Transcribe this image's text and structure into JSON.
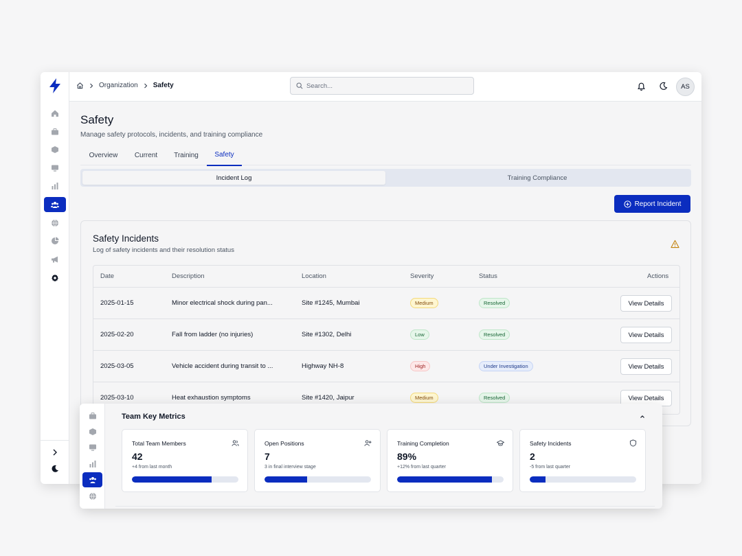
{
  "breadcrumb": {
    "items": [
      "Organization",
      "Safety"
    ]
  },
  "search": {
    "placeholder": "Search..."
  },
  "user": {
    "initials": "AS"
  },
  "page": {
    "title": "Safety",
    "subtitle": "Manage safety protocols, incidents, and training compliance"
  },
  "tabs": [
    "Overview",
    "Current",
    "Training",
    "Safety"
  ],
  "subtabs": [
    "Incident Log",
    "Training Compliance"
  ],
  "actions": {
    "report_label": "Report Incident"
  },
  "incidents": {
    "title": "Safety Incidents",
    "subtitle": "Log of safety incidents and their resolution status",
    "columns": [
      "Date",
      "Description",
      "Location",
      "Severity",
      "Status",
      "Actions"
    ],
    "rows": [
      {
        "date": "2025-01-15",
        "description": "Minor electrical shock during pan...",
        "location": "Site #1245, Mumbai",
        "severity": "Medium",
        "status": "Resolved",
        "action": "View Details"
      },
      {
        "date": "2025-02-20",
        "description": "Fall from ladder (no injuries)",
        "location": "Site #1302, Delhi",
        "severity": "Low",
        "status": "Resolved",
        "action": "View Details"
      },
      {
        "date": "2025-03-05",
        "description": "Vehicle accident during transit to ...",
        "location": "Highway NH-8",
        "severity": "High",
        "status": "Under Investigation",
        "action": "View Details"
      },
      {
        "date": "2025-03-10",
        "description": "Heat exhaustion symptoms",
        "location": "Site #1420, Jaipur",
        "severity": "Medium",
        "status": "Resolved",
        "action": "View Details"
      }
    ]
  },
  "metrics": {
    "title": "Team Key Metrics",
    "cards": [
      {
        "label": "Total Team Members",
        "value": "42",
        "note": "+4 from last month",
        "progress": 0.75,
        "icon": "users-icon"
      },
      {
        "label": "Open Positions",
        "value": "7",
        "note": "3 in final interview stage",
        "progress": 0.4,
        "icon": "user-plus-icon"
      },
      {
        "label": "Training Completion",
        "value": "89%",
        "note": "+12% from last quarter",
        "progress": 0.89,
        "icon": "graduation-cap-icon"
      },
      {
        "label": "Safety Incidents",
        "value": "2",
        "note": "-5 from last quarter",
        "progress": 0.15,
        "icon": "shield-icon"
      }
    ]
  },
  "colors": {
    "accent": "#0b2dbf",
    "warning": "#c2820d"
  }
}
